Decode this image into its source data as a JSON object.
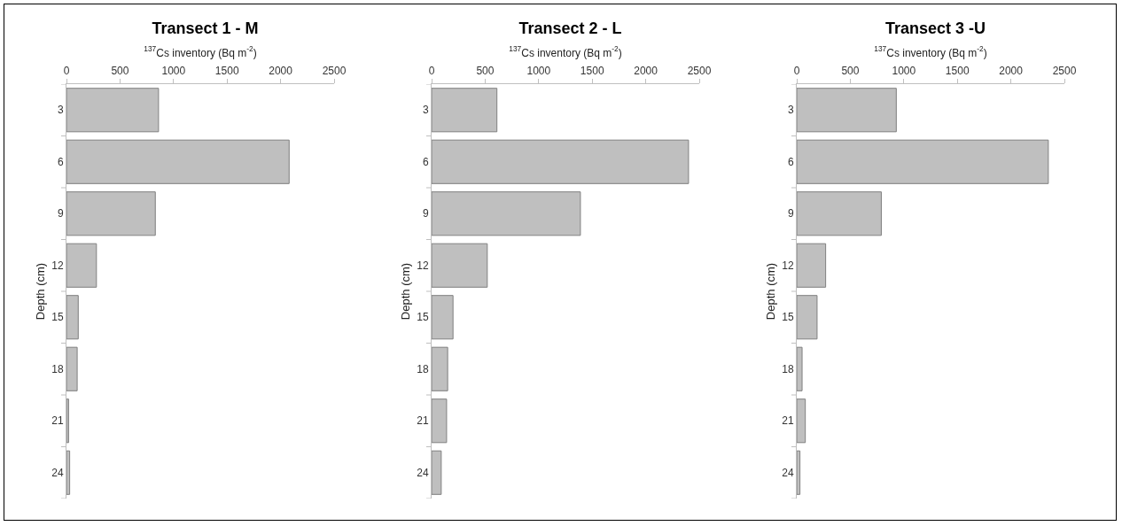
{
  "chart_data": [
    {
      "type": "bar",
      "orientation": "horizontal",
      "title": "Transect 1 - M",
      "xlabel": "$^{137}$Cs inventory (Bq m$^{-2}$)",
      "ylabel": "Depth (cm)",
      "categories": [
        "3",
        "6",
        "9",
        "12",
        "15",
        "18",
        "21",
        "24"
      ],
      "values": [
        860,
        2080,
        830,
        280,
        110,
        100,
        20,
        30
      ],
      "color": "#bfbfbf",
      "xlim": [
        0,
        2500
      ],
      "xticks": [
        0,
        500,
        1000,
        1500,
        2000,
        2500
      ]
    },
    {
      "type": "bar",
      "orientation": "horizontal",
      "title": "Transect 2 - L",
      "xlabel": "$^{137}$Cs inventory (Bq m$^{-2}$)",
      "ylabel": "Depth (cm)",
      "categories": [
        "3",
        "6",
        "9",
        "12",
        "15",
        "18",
        "21",
        "24"
      ],
      "values": [
        610,
        2400,
        1390,
        520,
        200,
        150,
        140,
        90
      ],
      "color": "#bfbfbf",
      "xlim": [
        0,
        2500
      ],
      "xticks": [
        0,
        500,
        1000,
        1500,
        2000,
        2500
      ]
    },
    {
      "type": "bar",
      "orientation": "horizontal",
      "title": "Transect 3 -U",
      "xlabel": "$^{137}$Cs inventory (Bq m$^{-2}$)",
      "ylabel": "Depth (cm)",
      "categories": [
        "3",
        "6",
        "9",
        "12",
        "15",
        "18",
        "21",
        "24"
      ],
      "values": [
        930,
        2350,
        790,
        270,
        190,
        50,
        80,
        30
      ],
      "color": "#bfbfbf",
      "xlim": [
        0,
        2500
      ],
      "xticks": [
        0,
        500,
        1000,
        1500,
        2000,
        2500
      ]
    }
  ]
}
